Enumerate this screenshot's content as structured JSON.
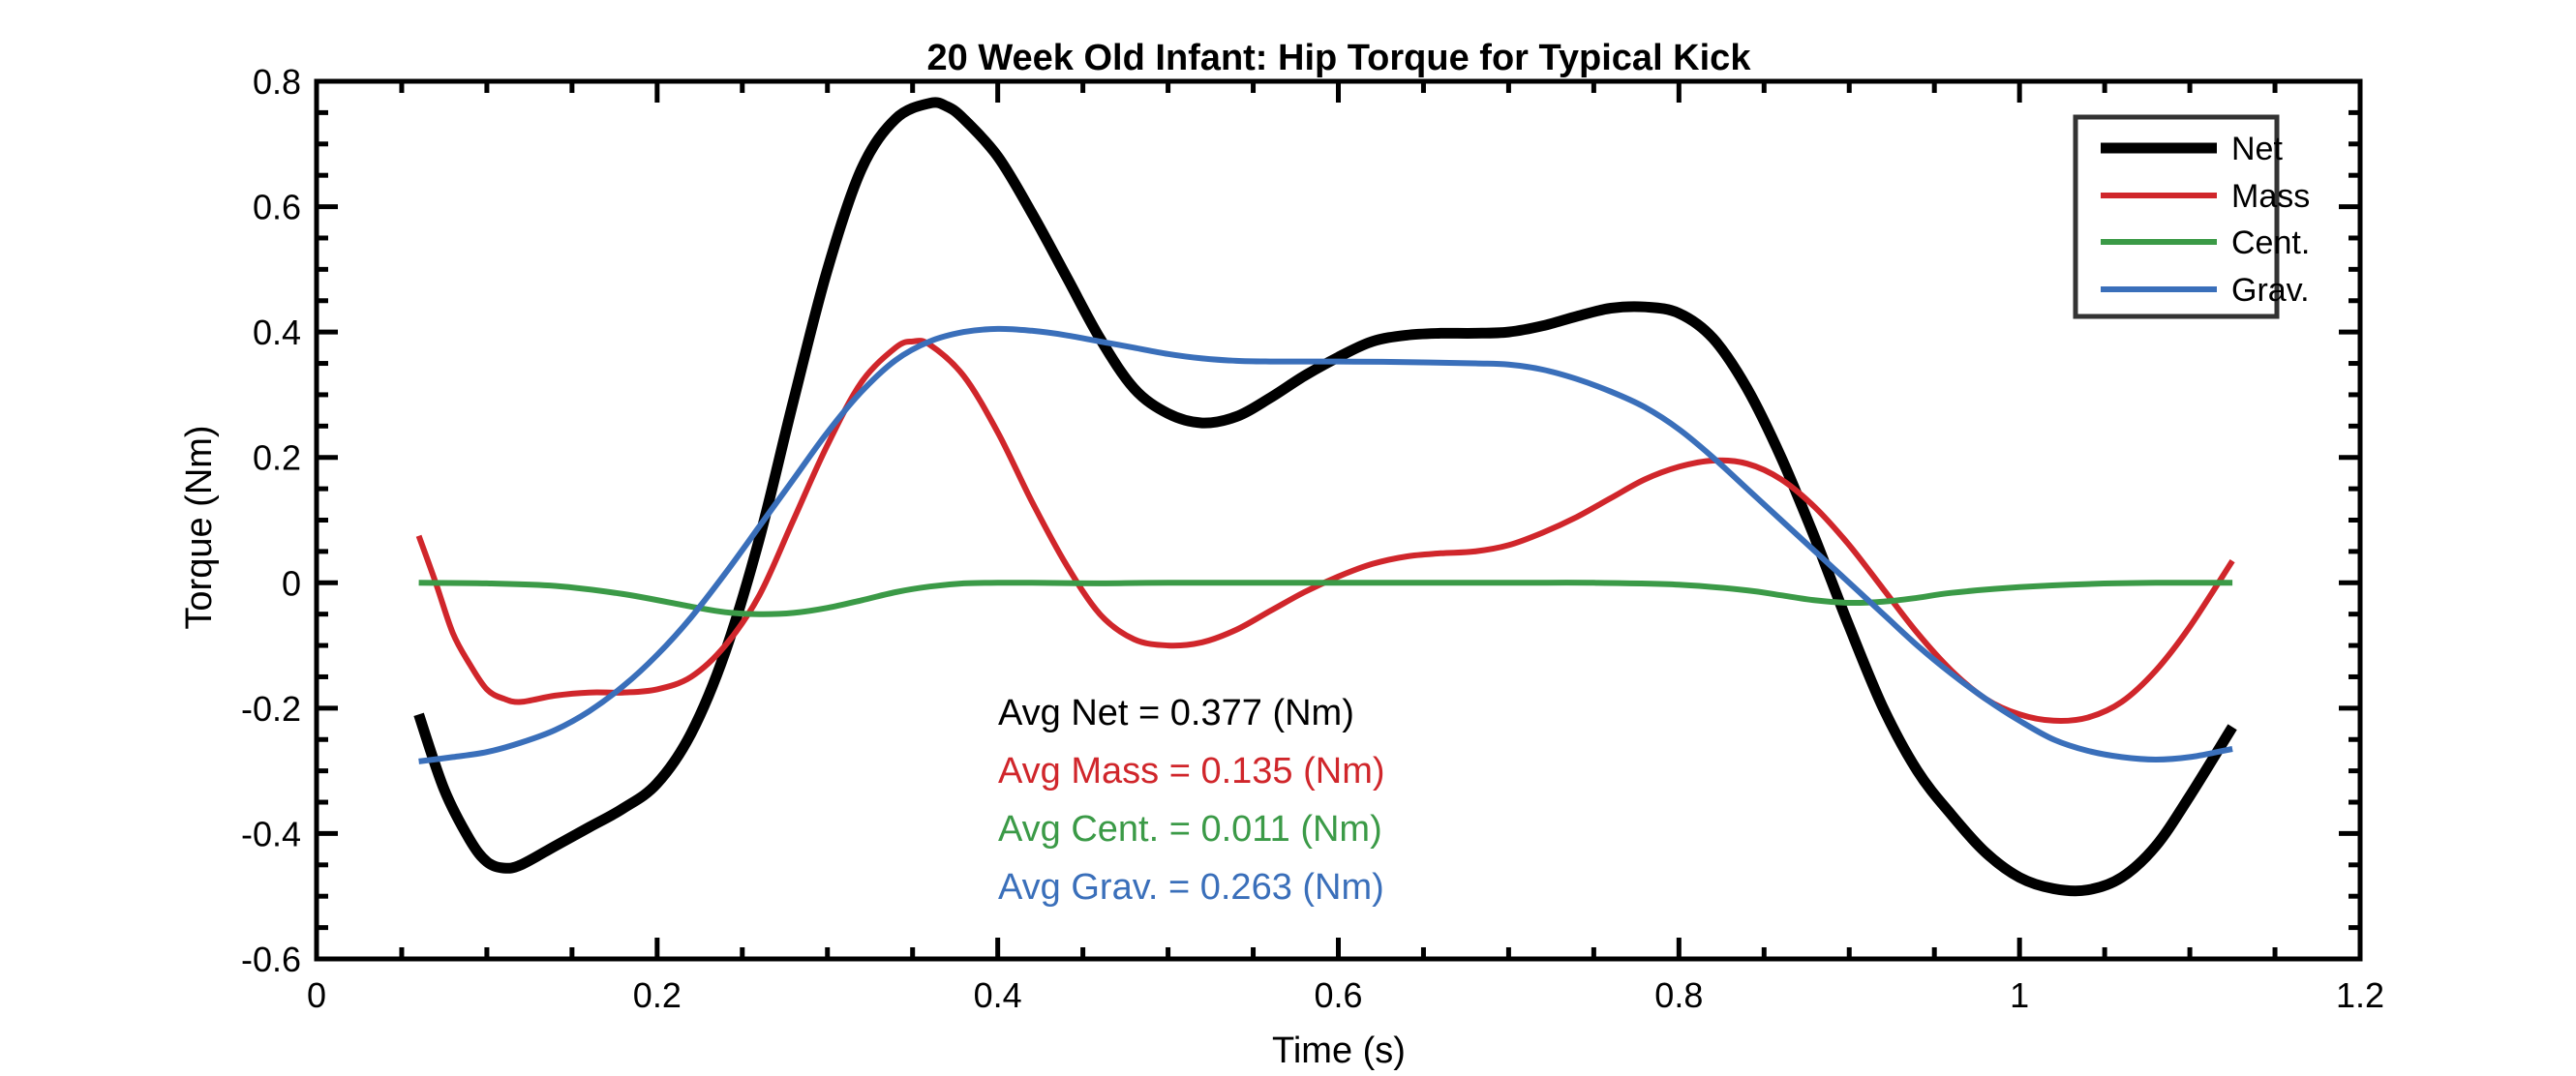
{
  "chart_data": {
    "type": "line",
    "title": "20 Week Old Infant: Hip Torque for Typical Kick",
    "xlabel": "Time (s)",
    "ylabel": "Torque (Nm)",
    "xlim": [
      0,
      1.2
    ],
    "ylim": [
      -0.6,
      0.8
    ],
    "xticks": [
      0,
      0.2,
      0.4,
      0.6,
      0.8,
      1.0,
      1.2
    ],
    "xtick_labels": [
      "0",
      "0.2",
      "0.4",
      "0.6",
      "0.8",
      "1",
      "1.2"
    ],
    "yticks": [
      -0.6,
      -0.4,
      -0.2,
      0,
      0.2,
      0.4,
      0.6,
      0.8
    ],
    "ytick_labels": [
      "-0.6",
      "-0.4",
      "-0.2",
      "0",
      "0.2",
      "0.4",
      "0.6",
      "0.8"
    ],
    "grid": false,
    "legend_position": "top-right",
    "series": [
      {
        "name": "Net",
        "color": "#000000",
        "x": [
          0.06,
          0.075,
          0.09,
          0.1,
          0.11,
          0.12,
          0.14,
          0.16,
          0.18,
          0.2,
          0.22,
          0.24,
          0.26,
          0.28,
          0.3,
          0.32,
          0.34,
          0.36,
          0.37,
          0.38,
          0.4,
          0.42,
          0.44,
          0.46,
          0.48,
          0.5,
          0.52,
          0.54,
          0.56,
          0.58,
          0.6,
          0.62,
          0.64,
          0.66,
          0.68,
          0.7,
          0.72,
          0.74,
          0.76,
          0.78,
          0.8,
          0.82,
          0.84,
          0.86,
          0.88,
          0.9,
          0.92,
          0.94,
          0.96,
          0.98,
          1.0,
          1.02,
          1.04,
          1.06,
          1.08,
          1.1,
          1.125
        ],
        "y": [
          -0.21,
          -0.33,
          -0.41,
          -0.445,
          -0.455,
          -0.45,
          -0.42,
          -0.39,
          -0.36,
          -0.32,
          -0.24,
          -0.11,
          0.07,
          0.29,
          0.5,
          0.66,
          0.74,
          0.765,
          0.76,
          0.74,
          0.68,
          0.59,
          0.49,
          0.39,
          0.31,
          0.27,
          0.255,
          0.265,
          0.295,
          0.33,
          0.36,
          0.385,
          0.395,
          0.398,
          0.398,
          0.4,
          0.41,
          0.425,
          0.438,
          0.44,
          0.43,
          0.39,
          0.31,
          0.2,
          0.07,
          -0.07,
          -0.2,
          -0.3,
          -0.37,
          -0.43,
          -0.47,
          -0.488,
          -0.49,
          -0.47,
          -0.42,
          -0.34,
          -0.23
        ]
      },
      {
        "name": "Mass",
        "color": "#d0262b",
        "x": [
          0.06,
          0.07,
          0.08,
          0.09,
          0.1,
          0.11,
          0.12,
          0.14,
          0.16,
          0.18,
          0.2,
          0.22,
          0.24,
          0.26,
          0.28,
          0.3,
          0.32,
          0.34,
          0.35,
          0.36,
          0.38,
          0.4,
          0.42,
          0.44,
          0.46,
          0.48,
          0.5,
          0.52,
          0.54,
          0.56,
          0.58,
          0.6,
          0.62,
          0.64,
          0.66,
          0.68,
          0.7,
          0.72,
          0.74,
          0.76,
          0.78,
          0.8,
          0.82,
          0.84,
          0.86,
          0.88,
          0.9,
          0.92,
          0.94,
          0.96,
          0.98,
          1.0,
          1.02,
          1.04,
          1.06,
          1.08,
          1.1,
          1.125
        ],
        "y": [
          0.075,
          0.0,
          -0.08,
          -0.13,
          -0.17,
          -0.185,
          -0.19,
          -0.18,
          -0.175,
          -0.175,
          -0.17,
          -0.15,
          -0.1,
          -0.02,
          0.1,
          0.22,
          0.32,
          0.375,
          0.385,
          0.38,
          0.33,
          0.24,
          0.13,
          0.03,
          -0.05,
          -0.09,
          -0.1,
          -0.095,
          -0.075,
          -0.045,
          -0.015,
          0.01,
          0.03,
          0.042,
          0.047,
          0.05,
          0.06,
          0.08,
          0.105,
          0.135,
          0.165,
          0.185,
          0.195,
          0.19,
          0.165,
          0.12,
          0.06,
          -0.01,
          -0.08,
          -0.14,
          -0.185,
          -0.21,
          -0.22,
          -0.215,
          -0.19,
          -0.14,
          -0.07,
          0.035
        ]
      },
      {
        "name": "Cent.",
        "color": "#3b9a47",
        "x": [
          0.06,
          0.1,
          0.14,
          0.18,
          0.22,
          0.24,
          0.26,
          0.28,
          0.3,
          0.32,
          0.34,
          0.36,
          0.38,
          0.4,
          0.42,
          0.46,
          0.5,
          0.6,
          0.7,
          0.75,
          0.8,
          0.84,
          0.86,
          0.88,
          0.9,
          0.92,
          0.94,
          0.96,
          1.0,
          1.04,
          1.08,
          1.125
        ],
        "y": [
          0.0,
          -0.001,
          -0.005,
          -0.018,
          -0.038,
          -0.047,
          -0.05,
          -0.048,
          -0.04,
          -0.028,
          -0.015,
          -0.006,
          -0.001,
          0.0,
          0.0,
          -0.001,
          0.0,
          0.0,
          0.0,
          0.0,
          -0.003,
          -0.012,
          -0.02,
          -0.028,
          -0.032,
          -0.03,
          -0.024,
          -0.016,
          -0.007,
          -0.002,
          0.0,
          0.0
        ]
      },
      {
        "name": "Grav.",
        "color": "#3a6fba",
        "x": [
          0.06,
          0.08,
          0.1,
          0.12,
          0.14,
          0.16,
          0.18,
          0.2,
          0.22,
          0.24,
          0.26,
          0.28,
          0.3,
          0.32,
          0.34,
          0.36,
          0.38,
          0.4,
          0.42,
          0.44,
          0.46,
          0.48,
          0.5,
          0.52,
          0.54,
          0.56,
          0.58,
          0.6,
          0.64,
          0.68,
          0.7,
          0.72,
          0.74,
          0.76,
          0.78,
          0.8,
          0.82,
          0.84,
          0.86,
          0.88,
          0.9,
          0.92,
          0.94,
          0.96,
          0.98,
          1.0,
          1.02,
          1.04,
          1.06,
          1.08,
          1.1,
          1.125
        ],
        "y": [
          -0.285,
          -0.278,
          -0.27,
          -0.255,
          -0.235,
          -0.205,
          -0.165,
          -0.115,
          -0.055,
          0.015,
          0.09,
          0.165,
          0.24,
          0.305,
          0.355,
          0.385,
          0.4,
          0.405,
          0.402,
          0.395,
          0.385,
          0.375,
          0.365,
          0.358,
          0.354,
          0.353,
          0.353,
          0.353,
          0.352,
          0.35,
          0.348,
          0.34,
          0.325,
          0.305,
          0.28,
          0.245,
          0.2,
          0.15,
          0.1,
          0.05,
          0.0,
          -0.05,
          -0.1,
          -0.145,
          -0.185,
          -0.22,
          -0.25,
          -0.268,
          -0.278,
          -0.282,
          -0.278,
          -0.265
        ]
      }
    ],
    "annotations": [
      {
        "text": "Avg Net = 0.377 (Nm)",
        "color": "#000000"
      },
      {
        "text": "Avg Mass = 0.135 (Nm)",
        "color": "#d0262b"
      },
      {
        "text": "Avg Cent. = 0.011 (Nm)",
        "color": "#3b9a47"
      },
      {
        "text": "Avg Grav. = 0.263 (Nm)",
        "color": "#3a6fba"
      }
    ]
  }
}
